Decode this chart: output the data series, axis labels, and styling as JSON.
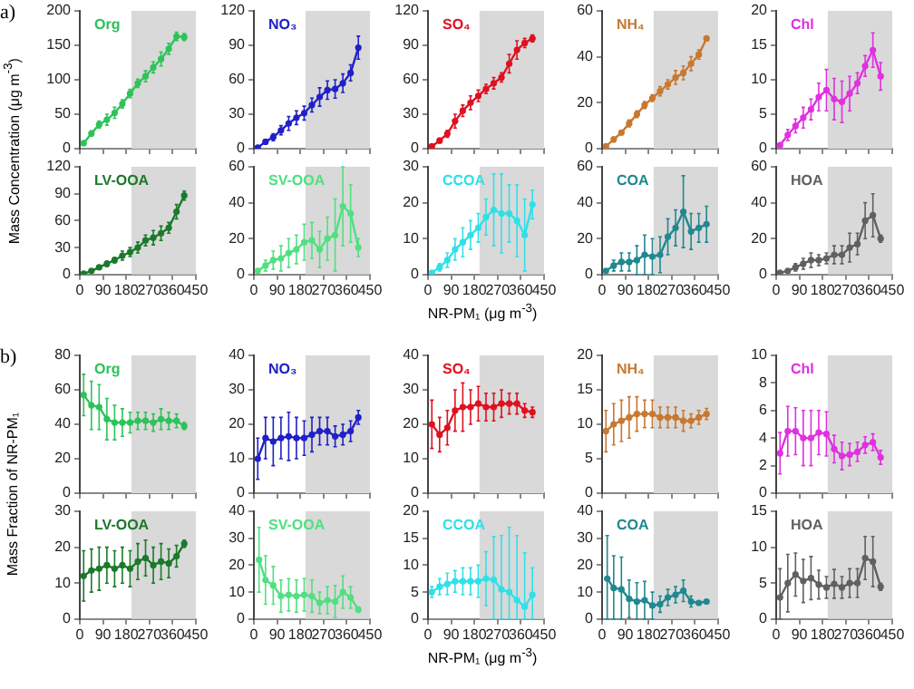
{
  "chart_data": [
    {
      "type": "line",
      "ylabel": "Mass Concentration (μg m$^{-3}$)",
      "annotations": [
        "a)"
      ],
      "x": [
        15,
        45,
        75,
        105,
        135,
        165,
        195,
        225,
        255,
        285,
        315,
        345,
        375,
        405
      ],
      "xlim": [
        0,
        450
      ],
      "xticks": [
        0,
        90,
        180,
        270,
        360,
        450
      ],
      "ylim": [
        0,
        200
      ],
      "yticks": [
        0,
        50,
        100,
        150,
        200
      ],
      "tick_labels": "y",
      "marker": "circle",
      "bands": [
        {
          "axis": "x",
          "from": 200,
          "to": 450,
          "color": "#d9d9d9"
        }
      ],
      "series": [
        {
          "name": "Org",
          "color": "#2dc35a",
          "values": [
            8,
            22,
            35,
            42,
            52,
            65,
            80,
            95,
            105,
            118,
            130,
            145,
            163,
            162
          ],
          "errors": [
            null,
            4,
            5,
            8,
            8,
            6,
            6,
            6,
            8,
            8,
            10,
            8,
            6,
            5
          ]
        }
      ]
    },
    {
      "type": "line",
      "x": [
        15,
        45,
        75,
        105,
        135,
        165,
        195,
        225,
        255,
        285,
        315,
        345,
        375,
        405
      ],
      "xlim": [
        0,
        450
      ],
      "xticks": [
        0,
        90,
        180,
        270,
        360,
        450
      ],
      "ylim": [
        0,
        120
      ],
      "yticks": [
        0,
        30,
        60,
        90,
        120
      ],
      "tick_labels": "y",
      "marker": "circle",
      "bands": [
        {
          "axis": "x",
          "from": 200,
          "to": 450,
          "color": "#d9d9d9"
        }
      ],
      "series": [
        {
          "name": "NO₃",
          "color": "#2020c8",
          "values": [
            1,
            6,
            10,
            16,
            22,
            27,
            31,
            38,
            45,
            51,
            52,
            57,
            66,
            88
          ],
          "errors": [
            null,
            2,
            3,
            4,
            6,
            6,
            6,
            6,
            8,
            8,
            8,
            8,
            7,
            10
          ]
        }
      ]
    },
    {
      "type": "line",
      "x": [
        15,
        45,
        75,
        105,
        135,
        165,
        195,
        225,
        255,
        285,
        315,
        345,
        375,
        405
      ],
      "xlim": [
        0,
        450
      ],
      "xticks": [
        0,
        90,
        180,
        270,
        360,
        450
      ],
      "ylim": [
        0,
        120
      ],
      "yticks": [
        0,
        30,
        60,
        90,
        120
      ],
      "tick_labels": "y",
      "marker": "circle",
      "bands": [
        {
          "axis": "x",
          "from": 200,
          "to": 450,
          "color": "#d9d9d9"
        }
      ],
      "series": [
        {
          "name": "SO₄",
          "color": "#e01020",
          "values": [
            2,
            7,
            13,
            24,
            33,
            40,
            46,
            52,
            57,
            62,
            74,
            86,
            92,
            96
          ],
          "errors": [
            null,
            2,
            3,
            6,
            5,
            6,
            5,
            4,
            5,
            4,
            8,
            8,
            4,
            3
          ]
        }
      ]
    },
    {
      "type": "line",
      "x": [
        15,
        45,
        75,
        105,
        135,
        165,
        195,
        225,
        255,
        285,
        315,
        345,
        375,
        405
      ],
      "xlim": [
        0,
        450
      ],
      "xticks": [
        0,
        90,
        180,
        270,
        360,
        450
      ],
      "ylim": [
        0,
        60
      ],
      "yticks": [
        0,
        20,
        40,
        60
      ],
      "tick_labels": "y",
      "marker": "circle",
      "bands": [
        {
          "axis": "x",
          "from": 200,
          "to": 450,
          "color": "#d9d9d9"
        }
      ],
      "series": [
        {
          "name": "NH₄",
          "color": "#c87830",
          "values": [
            1,
            4,
            7,
            11,
            15,
            19,
            22,
            25,
            28,
            31,
            33,
            37,
            41,
            48
          ],
          "errors": [
            null,
            1,
            1,
            1.5,
            1.5,
            1.5,
            1.5,
            2,
            2,
            3,
            3,
            3,
            2,
            1
          ]
        }
      ]
    },
    {
      "type": "line",
      "x": [
        15,
        45,
        75,
        105,
        135,
        165,
        195,
        225,
        255,
        285,
        315,
        345,
        375,
        405
      ],
      "xlim": [
        0,
        450
      ],
      "xticks": [
        0,
        90,
        180,
        270,
        360,
        450
      ],
      "ylim": [
        0,
        20
      ],
      "yticks": [
        0,
        5,
        10,
        15,
        20
      ],
      "tick_labels": "y",
      "marker": "circle",
      "bands": [
        {
          "axis": "x",
          "from": 200,
          "to": 450,
          "color": "#d9d9d9"
        }
      ],
      "series": [
        {
          "name": "Chl",
          "color": "#e030e0",
          "values": [
            0.5,
            2,
            3.3,
            4.5,
            5.7,
            7.5,
            8.5,
            7.2,
            6.8,
            8,
            9.5,
            12,
            14.3,
            10.5
          ],
          "errors": [
            null,
            0.8,
            1,
            1.5,
            1.5,
            2,
            3,
            3,
            3,
            2.5,
            1.5,
            1.5,
            2.5,
            2
          ]
        }
      ]
    },
    {
      "type": "line",
      "x": [
        15,
        45,
        75,
        105,
        135,
        165,
        195,
        225,
        255,
        285,
        315,
        345,
        375,
        405
      ],
      "xlim": [
        0,
        450
      ],
      "xticks": [
        0,
        90,
        180,
        270,
        360,
        450
      ],
      "ylim": [
        0,
        120
      ],
      "yticks": [
        0,
        30,
        60,
        90,
        120
      ],
      "marker": "circle",
      "bands": [
        {
          "axis": "x",
          "from": 200,
          "to": 450,
          "color": "#d9d9d9"
        }
      ],
      "series": [
        {
          "name": "LV-OOA",
          "color": "#1a7a2a",
          "values": [
            1,
            4,
            8,
            12,
            16,
            21,
            25,
            30,
            38,
            41,
            46,
            52,
            70,
            88
          ],
          "errors": [
            null,
            1,
            null,
            3,
            3,
            5,
            5,
            6,
            6,
            8,
            8,
            6,
            8,
            5
          ]
        }
      ]
    },
    {
      "type": "line",
      "x": [
        15,
        45,
        75,
        105,
        135,
        165,
        195,
        225,
        255,
        285,
        315,
        345,
        375,
        405
      ],
      "xlim": [
        0,
        450
      ],
      "xticks": [
        0,
        90,
        180,
        270,
        360,
        450
      ],
      "ylim": [
        0,
        60
      ],
      "yticks": [
        0,
        20,
        40,
        60
      ],
      "marker": "circle",
      "bands": [
        {
          "axis": "x",
          "from": 200,
          "to": 450,
          "color": "#d9d9d9"
        }
      ],
      "series": [
        {
          "name": "SV-OOA",
          "color": "#50e080",
          "values": [
            2,
            5,
            8,
            9,
            12,
            14,
            18,
            19,
            14,
            20,
            22,
            38,
            34,
            15
          ],
          "errors": [
            null,
            3,
            5,
            7,
            8,
            8,
            10,
            10,
            10,
            12,
            20,
            22,
            16,
            5
          ]
        }
      ]
    },
    {
      "type": "line",
      "xlabel": "NR-PM₁ (μg m$^{-3}$)",
      "x": [
        15,
        45,
        75,
        105,
        135,
        165,
        195,
        225,
        255,
        285,
        315,
        345,
        375,
        405
      ],
      "xlim": [
        0,
        450
      ],
      "xticks": [
        0,
        90,
        180,
        270,
        360,
        450
      ],
      "ylim": [
        0,
        30
      ],
      "yticks": [
        0,
        10,
        20,
        30
      ],
      "marker": "circle",
      "bands": [
        {
          "axis": "x",
          "from": 200,
          "to": 450,
          "color": "#d9d9d9"
        }
      ],
      "series": [
        {
          "name": "CCOA",
          "color": "#30e0e8",
          "values": [
            0.5,
            2,
            4,
            7,
            9,
            11,
            13,
            16,
            18,
            17,
            17,
            15,
            11,
            19.5
          ],
          "errors": [
            null,
            1,
            2,
            3,
            4,
            4,
            4,
            5,
            10,
            11,
            8,
            10,
            10,
            4
          ]
        }
      ]
    },
    {
      "type": "line",
      "x": [
        15,
        45,
        75,
        105,
        135,
        165,
        195,
        225,
        255,
        285,
        315,
        345,
        375,
        405
      ],
      "xlim": [
        0,
        450
      ],
      "xticks": [
        0,
        90,
        180,
        270,
        360,
        450
      ],
      "ylim": [
        0,
        60
      ],
      "yticks": [
        0,
        20,
        40,
        60
      ],
      "marker": "circle",
      "bands": [
        {
          "axis": "x",
          "from": 200,
          "to": 450,
          "color": "#d9d9d9"
        }
      ],
      "series": [
        {
          "name": "COA",
          "color": "#208890",
          "values": [
            2,
            5,
            7,
            7,
            8,
            11,
            10,
            11,
            21,
            26,
            35,
            24,
            26,
            28
          ],
          "errors": [
            null,
            3,
            5,
            5,
            8,
            11,
            10,
            10,
            10,
            10,
            20,
            10,
            8,
            10
          ]
        }
      ]
    },
    {
      "type": "line",
      "x": [
        15,
        45,
        75,
        105,
        135,
        165,
        195,
        225,
        255,
        285,
        315,
        345,
        375,
        405
      ],
      "xlim": [
        0,
        450
      ],
      "xticks": [
        0,
        90,
        180,
        270,
        360,
        450
      ],
      "ylim": [
        0,
        60
      ],
      "yticks": [
        0,
        20,
        40,
        60
      ],
      "marker": "circle",
      "bands": [
        {
          "axis": "x",
          "from": 200,
          "to": 450,
          "color": "#d9d9d9"
        }
      ],
      "series": [
        {
          "name": "HOA",
          "color": "#606060",
          "values": [
            1,
            2,
            4,
            6,
            8,
            8,
            9,
            11,
            11,
            15,
            17,
            30,
            33,
            20
          ],
          "errors": [
            null,
            null,
            2,
            3,
            4,
            3,
            3,
            5,
            5,
            8,
            6,
            10,
            12,
            2
          ]
        }
      ]
    },
    {
      "type": "line",
      "ylabel": "Mass Fraction of NR-PM₁",
      "annotations": [
        "b)"
      ],
      "x": [
        15,
        45,
        75,
        105,
        135,
        165,
        195,
        225,
        255,
        285,
        315,
        345,
        375,
        405
      ],
      "xlim": [
        0,
        450
      ],
      "xticks": [
        0,
        90,
        180,
        270,
        360,
        450
      ],
      "ylim": [
        0,
        80
      ],
      "yticks": [
        0,
        20,
        40,
        60,
        80
      ],
      "tick_labels": "y",
      "marker": "circle",
      "bands": [
        {
          "axis": "x",
          "from": 200,
          "to": 450,
          "color": "#d9d9d9"
        }
      ],
      "series": [
        {
          "name": "Org",
          "color": "#2dc35a",
          "values": [
            57,
            51,
            50,
            43,
            41,
            41,
            41,
            42,
            42,
            41,
            43,
            42,
            42,
            39
          ],
          "errors": [
            12,
            14,
            13,
            12,
            10,
            8,
            6,
            5,
            5,
            5,
            6,
            5,
            4,
            2
          ]
        }
      ]
    },
    {
      "type": "line",
      "x": [
        15,
        45,
        75,
        105,
        135,
        165,
        195,
        225,
        255,
        285,
        315,
        345,
        375,
        405
      ],
      "xlim": [
        0,
        450
      ],
      "xticks": [
        0,
        90,
        180,
        270,
        360,
        450
      ],
      "ylim": [
        0,
        40
      ],
      "yticks": [
        0,
        10,
        20,
        30,
        40
      ],
      "tick_labels": "y",
      "marker": "circle",
      "bands": [
        {
          "axis": "x",
          "from": 200,
          "to": 450,
          "color": "#d9d9d9"
        }
      ],
      "series": [
        {
          "name": "NO₃",
          "color": "#2020c8",
          "values": [
            10,
            16,
            15,
            16,
            16.5,
            16,
            16,
            17,
            18,
            18,
            16.5,
            17,
            18,
            22
          ],
          "errors": [
            6,
            6,
            7,
            6,
            7,
            6,
            5,
            5,
            4,
            4,
            3,
            3,
            3,
            2
          ]
        }
      ]
    },
    {
      "type": "line",
      "x": [
        15,
        45,
        75,
        105,
        135,
        165,
        195,
        225,
        255,
        285,
        315,
        345,
        375,
        405
      ],
      "xlim": [
        0,
        450
      ],
      "xticks": [
        0,
        90,
        180,
        270,
        360,
        450
      ],
      "ylim": [
        0,
        40
      ],
      "yticks": [
        0,
        10,
        20,
        30,
        40
      ],
      "tick_labels": "y",
      "marker": "circle",
      "bands": [
        {
          "axis": "x",
          "from": 200,
          "to": 450,
          "color": "#d9d9d9"
        }
      ],
      "series": [
        {
          "name": "SO₄",
          "color": "#e01020",
          "values": [
            20,
            17,
            19,
            24,
            25,
            25,
            26,
            25,
            25,
            26,
            26,
            26,
            24,
            23.5
          ],
          "errors": [
            7,
            5,
            5,
            6,
            7,
            5,
            5,
            4,
            4,
            4,
            3,
            3,
            2,
            1.5
          ]
        }
      ]
    },
    {
      "type": "line",
      "x": [
        15,
        45,
        75,
        105,
        135,
        165,
        195,
        225,
        255,
        285,
        315,
        345,
        375,
        405
      ],
      "xlim": [
        0,
        450
      ],
      "xticks": [
        0,
        90,
        180,
        270,
        360,
        450
      ],
      "ylim": [
        0,
        20
      ],
      "yticks": [
        0,
        5,
        10,
        15,
        20
      ],
      "tick_labels": "y",
      "marker": "circle",
      "bands": [
        {
          "axis": "x",
          "from": 200,
          "to": 450,
          "color": "#d9d9d9"
        }
      ],
      "series": [
        {
          "name": "NH₄",
          "color": "#c87830",
          "values": [
            9,
            10,
            10.5,
            11,
            11.5,
            11.5,
            11.5,
            11,
            11,
            11,
            10.5,
            10.5,
            11,
            11.5
          ],
          "errors": [
            3,
            3,
            3,
            3,
            2.5,
            2,
            2,
            1.5,
            1.5,
            1.5,
            1.5,
            1,
            1,
            0.8
          ]
        }
      ]
    },
    {
      "type": "line",
      "x": [
        15,
        45,
        75,
        105,
        135,
        165,
        195,
        225,
        255,
        285,
        315,
        345,
        375,
        405
      ],
      "xlim": [
        0,
        450
      ],
      "xticks": [
        0,
        90,
        180,
        270,
        360,
        450
      ],
      "ylim": [
        0,
        10
      ],
      "yticks": [
        0,
        2,
        4,
        6,
        8,
        10
      ],
      "tick_labels": "y",
      "marker": "circle",
      "bands": [
        {
          "axis": "x",
          "from": 200,
          "to": 450,
          "color": "#d9d9d9"
        }
      ],
      "series": [
        {
          "name": "Chl",
          "color": "#e030e0",
          "values": [
            2.9,
            4.5,
            4.5,
            4,
            4,
            4.4,
            4.3,
            3.2,
            2.7,
            2.8,
            3,
            3.5,
            3.7,
            2.6
          ],
          "errors": [
            1.5,
            1.8,
            1.7,
            2,
            2,
            1.6,
            1.6,
            1,
            1,
            0.8,
            0.7,
            0.6,
            0.6,
            0.5
          ]
        }
      ]
    },
    {
      "type": "line",
      "x": [
        15,
        45,
        75,
        105,
        135,
        165,
        195,
        225,
        255,
        285,
        315,
        345,
        375,
        405
      ],
      "xlim": [
        0,
        450
      ],
      "xticks": [
        0,
        90,
        180,
        270,
        360,
        450
      ],
      "ylim": [
        0,
        30
      ],
      "yticks": [
        0,
        10,
        20,
        30
      ],
      "marker": "circle",
      "bands": [
        {
          "axis": "x",
          "from": 200,
          "to": 450,
          "color": "#d9d9d9"
        }
      ],
      "series": [
        {
          "name": "LV-OOA",
          "color": "#1a7a2a",
          "values": [
            12,
            13.5,
            14,
            15,
            14,
            15,
            14,
            16,
            17,
            15,
            16,
            15.5,
            17.5,
            21
          ],
          "errors": [
            7,
            6,
            6,
            5,
            5,
            5,
            5,
            5,
            5,
            5,
            5,
            4,
            3,
            1
          ]
        }
      ]
    },
    {
      "type": "line",
      "x": [
        20,
        45,
        75,
        105,
        135,
        165,
        195,
        225,
        255,
        285,
        315,
        345,
        375,
        405
      ],
      "xlim": [
        0,
        450
      ],
      "xticks": [
        0,
        90,
        180,
        270,
        360,
        450
      ],
      "ylim": [
        0,
        40
      ],
      "yticks": [
        0,
        10,
        20,
        30,
        40
      ],
      "marker": "circle",
      "bands": [
        {
          "axis": "x",
          "from": 200,
          "to": 450,
          "color": "#d9d9d9"
        }
      ],
      "series": [
        {
          "name": "SV-OOA",
          "color": "#50e080",
          "values": [
            22,
            14.5,
            12.5,
            8.5,
            9,
            8.5,
            9,
            8.5,
            6,
            7,
            6.5,
            10,
            8,
            3.5
          ],
          "errors": [
            12,
            9,
            7,
            6,
            6,
            6,
            6,
            6,
            4,
            5,
            6,
            6,
            4,
            1
          ]
        }
      ]
    },
    {
      "type": "line",
      "xlabel": "NR-PM₁ (μg m$^{-3}$)",
      "x": [
        15,
        45,
        75,
        105,
        135,
        165,
        195,
        225,
        255,
        285,
        315,
        345,
        375,
        405
      ],
      "xlim": [
        0,
        450
      ],
      "xticks": [
        0,
        90,
        180,
        270,
        360,
        450
      ],
      "ylim": [
        0,
        20
      ],
      "yticks": [
        0,
        5,
        10,
        15,
        20
      ],
      "marker": "circle",
      "bands": [
        {
          "axis": "x",
          "from": 200,
          "to": 450,
          "color": "#d9d9d9"
        }
      ],
      "series": [
        {
          "name": "CCOA",
          "color": "#30e0e8",
          "values": [
            5,
            6,
            6.5,
            7,
            7,
            7,
            7,
            7.5,
            7.3,
            5.5,
            5,
            3.5,
            2.3,
            4.5
          ],
          "errors": [
            1,
            1.5,
            2,
            2,
            2.5,
            2.5,
            3,
            5,
            [
              0,
              15.3
            ],
            [
              0,
              15.5
            ],
            [
              0,
              17
            ],
            [
              0,
              15.5
            ],
            [
              0,
              12.3
            ],
            [
              0,
              9.5
            ]
          ]
        }
      ]
    },
    {
      "type": "line",
      "x": [
        20,
        45,
        75,
        105,
        135,
        165,
        195,
        225,
        255,
        285,
        315,
        345,
        375,
        405
      ],
      "xlim": [
        0,
        450
      ],
      "xticks": [
        0,
        90,
        180,
        270,
        360,
        450
      ],
      "ylim": [
        0,
        40
      ],
      "yticks": [
        0,
        10,
        20,
        30,
        40
      ],
      "marker": "circle",
      "bands": [
        {
          "axis": "x",
          "from": 200,
          "to": 450,
          "color": "#d9d9d9"
        }
      ],
      "series": [
        {
          "name": "COA",
          "color": "#208890",
          "values": [
            15,
            11.5,
            11,
            7.5,
            6.5,
            7,
            5,
            5.5,
            8,
            9,
            10.5,
            6.5,
            6,
            6.5
          ],
          "errors": [
            [
              0,
              31
            ],
            [
              0,
              23.5
            ],
            [
              0,
              23
            ],
            7,
            [
              0,
              13.5
            ],
            7,
            5,
            3,
            3,
            3,
            4,
            2,
            null,
            null
          ]
        }
      ]
    },
    {
      "type": "line",
      "x": [
        15,
        45,
        75,
        105,
        135,
        165,
        195,
        225,
        255,
        285,
        315,
        345,
        375,
        405
      ],
      "xlim": [
        0,
        450
      ],
      "xticks": [
        0,
        90,
        180,
        270,
        360,
        450
      ],
      "ylim": [
        0,
        15
      ],
      "yticks": [
        0,
        5,
        10,
        15
      ],
      "marker": "circle",
      "bands": [
        {
          "axis": "x",
          "from": 200,
          "to": 450,
          "color": "#d9d9d9"
        }
      ],
      "series": [
        {
          "name": "HOA",
          "color": "#606060",
          "values": [
            3,
            5,
            6.2,
            5.3,
            5.7,
            4.8,
            4.4,
            4.9,
            4.4,
            5,
            5,
            8.5,
            8,
            4.5
          ],
          "errors": [
            [
              0,
              7
            ],
            4,
            3,
            3,
            3,
            2,
            1.5,
            2,
            1.5,
            2,
            2,
            3,
            3.5,
            0.5
          ]
        }
      ]
    }
  ]
}
